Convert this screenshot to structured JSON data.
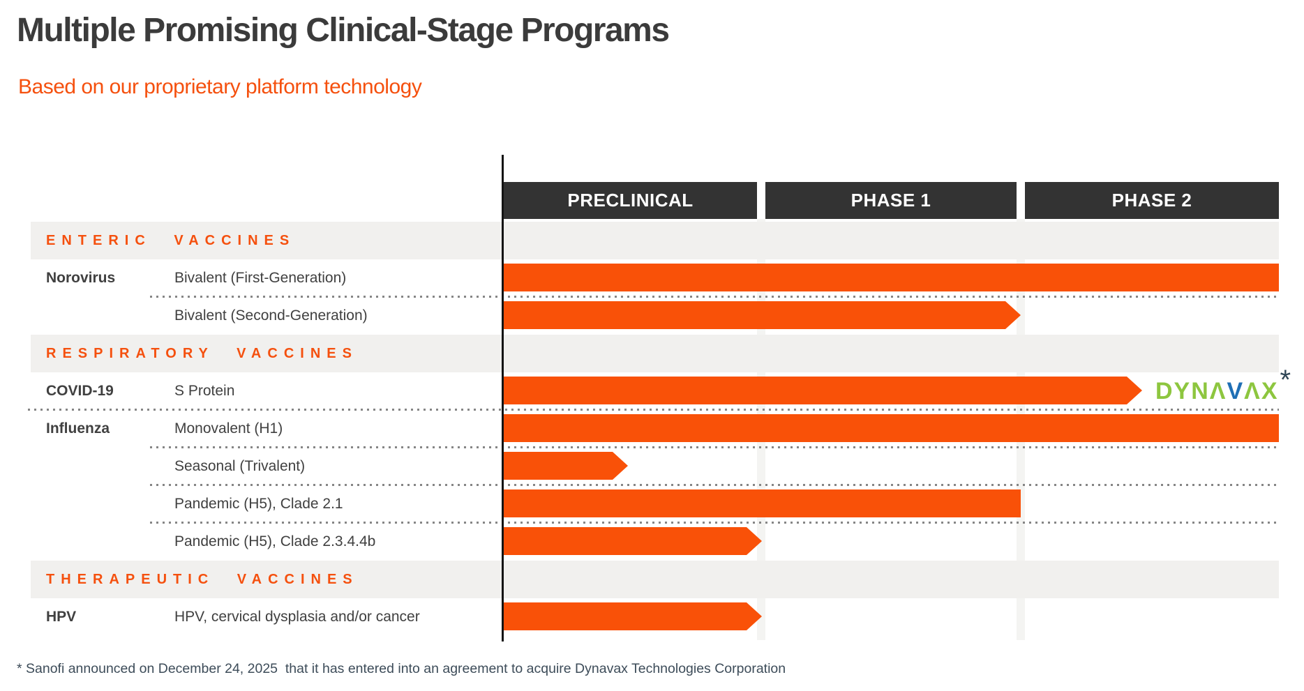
{
  "slide": {
    "title": "Multiple Promising Clinical-Stage Programs",
    "subtitle": "Based on our proprietary platform technology",
    "footnote": "* Sanofi announced on December 24, 2025  that it has entered into an agreement to acquire Dynavax Technologies Corporation"
  },
  "colors": {
    "accent_orange": "#F95108",
    "orange_text": "#F5500E",
    "stage_header_bg": "#333333",
    "stage_header_text": "#FFFFFF",
    "section_band_bg": "#F1F0EE",
    "title_text": "#3B3B3B",
    "body_text": "#404040",
    "footnote_text": "#3D4C59",
    "dotted_line": "#858585",
    "dynavax_green": "#8DC63F",
    "dynavax_blue": "#1F6FB5",
    "asterisk": "#2F4656"
  },
  "logo": {
    "name": "Dynavax",
    "letters": [
      {
        "text": "DYN",
        "color": "green"
      },
      {
        "text": "Λ",
        "color": "green"
      },
      {
        "text": "V",
        "color": "blue"
      },
      {
        "text": "Λ",
        "color": "green"
      },
      {
        "text": "X",
        "color": "green"
      }
    ],
    "asterisk": "*"
  },
  "chart_data": {
    "type": "gantt",
    "title": "Multiple Promising Clinical-Stage Programs",
    "stages": [
      "PRECLINICAL",
      "PHASE 1",
      "PHASE 2"
    ],
    "value_scale": "phases completed: 1.0 = through Preclinical, 2.0 = through Phase 1, 3.0 = through Phase 2",
    "rows": [
      {
        "kind": "section",
        "label": "ENTERIC VACCINES"
      },
      {
        "kind": "program",
        "disease": "Norovirus",
        "program": "Bivalent (First-Generation)",
        "value": 3.0,
        "arrow": false,
        "divider_after": "program"
      },
      {
        "kind": "program",
        "disease": "",
        "program": "Bivalent (Second-Generation)",
        "value": 2.0,
        "arrow": true,
        "divider_after": ""
      },
      {
        "kind": "section",
        "label": "RESPIRATORY VACCINES"
      },
      {
        "kind": "program",
        "disease": "COVID-19",
        "program": "S Protein",
        "value": 2.47,
        "arrow": true,
        "divider_after": "disease",
        "annotation": "dynavax-logo"
      },
      {
        "kind": "program",
        "disease": "Influenza",
        "program": "Monovalent (H1)",
        "value": 3.0,
        "arrow": false,
        "divider_after": "program"
      },
      {
        "kind": "program",
        "disease": "",
        "program": "Seasonal (Trivalent)",
        "value": 0.48,
        "arrow": true,
        "divider_after": "program"
      },
      {
        "kind": "program",
        "disease": "",
        "program": "Pandemic (H5), Clade 2.1",
        "value": 2.0,
        "arrow": false,
        "divider_after": "program"
      },
      {
        "kind": "program",
        "disease": "",
        "program": "Pandemic (H5), Clade 2.3.4.4b",
        "value": 1.0,
        "arrow": true,
        "divider_after": ""
      },
      {
        "kind": "section",
        "label": "THERAPEUTIC VACCINES"
      },
      {
        "kind": "program",
        "disease": "HPV",
        "program": "HPV, cervical dysplasia and/or cancer",
        "value": 1.0,
        "arrow": true,
        "divider_after": ""
      }
    ]
  }
}
